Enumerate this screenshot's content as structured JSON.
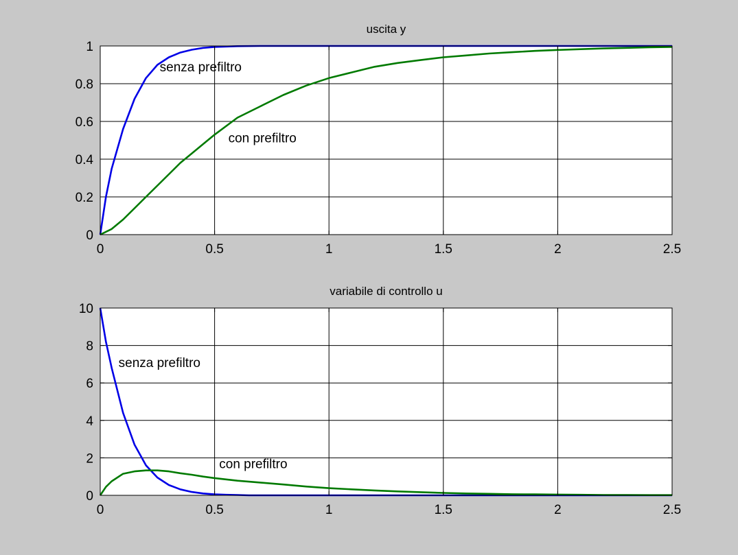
{
  "chart_data": [
    {
      "type": "line",
      "title": "uscita y",
      "xlim": [
        0,
        2.5
      ],
      "ylim": [
        0,
        1
      ],
      "xticks": [
        "0",
        "0.5",
        "1",
        "1.5",
        "2",
        "2.5"
      ],
      "yticks": [
        "0",
        "0.2",
        "0.4",
        "0.6",
        "0.8",
        "1"
      ],
      "xtick_values": [
        0,
        0.5,
        1,
        1.5,
        2,
        2.5
      ],
      "ytick_values": [
        0,
        0.2,
        0.4,
        0.6,
        0.8,
        1
      ],
      "grid": true,
      "series": [
        {
          "color": "#0000e6",
          "x": [
            0,
            0.025,
            0.05,
            0.1,
            0.15,
            0.2,
            0.25,
            0.3,
            0.35,
            0.4,
            0.45,
            0.5,
            0.6,
            0.7,
            1.0,
            1.5,
            2.0,
            2.5
          ],
          "y": [
            0,
            0.2,
            0.35,
            0.56,
            0.72,
            0.83,
            0.9,
            0.94,
            0.965,
            0.98,
            0.99,
            0.995,
            0.999,
            1.0,
            1.0,
            1.0,
            1.0,
            1.0
          ]
        },
        {
          "color": "#007a00",
          "x": [
            0,
            0.05,
            0.1,
            0.15,
            0.2,
            0.25,
            0.3,
            0.35,
            0.4,
            0.45,
            0.5,
            0.6,
            0.7,
            0.8,
            0.9,
            1.0,
            1.1,
            1.2,
            1.3,
            1.4,
            1.5,
            1.6,
            1.7,
            1.8,
            1.9,
            2.0,
            2.1,
            2.2,
            2.3,
            2.4,
            2.5
          ],
          "y": [
            0,
            0.03,
            0.08,
            0.14,
            0.2,
            0.26,
            0.32,
            0.38,
            0.43,
            0.48,
            0.53,
            0.62,
            0.68,
            0.74,
            0.79,
            0.83,
            0.86,
            0.89,
            0.91,
            0.925,
            0.94,
            0.95,
            0.96,
            0.967,
            0.974,
            0.979,
            0.983,
            0.987,
            0.99,
            0.993,
            0.995
          ]
        }
      ],
      "annotations": [
        {
          "text": "senza prefiltro",
          "x": 0.26,
          "y": 0.865
        },
        {
          "text": "con prefiltro",
          "x": 0.56,
          "y": 0.49
        }
      ]
    },
    {
      "type": "line",
      "title": "variabile di controllo u",
      "xlim": [
        0,
        2.5
      ],
      "ylim": [
        0,
        10
      ],
      "xticks": [
        "0",
        "0.5",
        "1",
        "1.5",
        "2",
        "2.5"
      ],
      "yticks": [
        "0",
        "2",
        "4",
        "6",
        "8",
        "10"
      ],
      "xtick_values": [
        0,
        0.5,
        1,
        1.5,
        2,
        2.5
      ],
      "ytick_values": [
        0,
        2,
        4,
        6,
        8,
        10
      ],
      "grid": true,
      "series": [
        {
          "color": "#0000e6",
          "x": [
            0,
            0.025,
            0.05,
            0.1,
            0.15,
            0.2,
            0.25,
            0.3,
            0.35,
            0.4,
            0.45,
            0.5,
            0.55,
            0.6,
            0.65,
            1.0,
            1.5,
            2.0,
            2.5
          ],
          "y": [
            10,
            8.2,
            6.8,
            4.4,
            2.7,
            1.6,
            0.95,
            0.55,
            0.32,
            0.18,
            0.1,
            0.05,
            0.03,
            0.02,
            0.0,
            0,
            0,
            0,
            0
          ]
        },
        {
          "color": "#007a00",
          "x": [
            0,
            0.025,
            0.05,
            0.1,
            0.15,
            0.2,
            0.25,
            0.3,
            0.35,
            0.4,
            0.45,
            0.5,
            0.6,
            0.7,
            0.8,
            0.9,
            1.0,
            1.1,
            1.2,
            1.3,
            1.4,
            1.5,
            1.6,
            1.7,
            1.8,
            1.9,
            2.0,
            2.1,
            2.2,
            2.3,
            2.4,
            2.5
          ],
          "y": [
            0,
            0.45,
            0.75,
            1.15,
            1.28,
            1.33,
            1.33,
            1.28,
            1.18,
            1.1,
            1.0,
            0.92,
            0.78,
            0.68,
            0.58,
            0.47,
            0.38,
            0.32,
            0.26,
            0.21,
            0.17,
            0.13,
            0.1,
            0.08,
            0.06,
            0.05,
            0.04,
            0.03,
            0.02,
            0.015,
            0.01,
            0.01
          ]
        }
      ],
      "annotations": [
        {
          "text": "senza prefiltro",
          "x": 0.08,
          "y": 6.85
        },
        {
          "text": "con prefiltro",
          "x": 0.52,
          "y": 1.45
        }
      ]
    }
  ]
}
